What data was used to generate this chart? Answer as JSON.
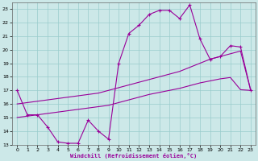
{
  "xlabel": "Windchill (Refroidissement éolien,°C)",
  "xlim": [
    -0.5,
    23.5
  ],
  "ylim": [
    13,
    23.5
  ],
  "yticks": [
    13,
    14,
    15,
    16,
    17,
    18,
    19,
    20,
    21,
    22,
    23
  ],
  "xticks": [
    0,
    1,
    2,
    3,
    4,
    5,
    6,
    7,
    8,
    9,
    10,
    11,
    12,
    13,
    14,
    15,
    16,
    17,
    18,
    19,
    20,
    21,
    22,
    23
  ],
  "bg_color": "#cce8e8",
  "grid_color": "#99cccc",
  "line_color": "#990099",
  "line1_x": [
    0,
    1,
    2,
    3,
    4,
    5,
    6,
    7,
    8,
    9,
    10,
    11,
    12,
    13,
    14,
    15,
    16,
    17,
    18,
    19,
    20,
    21,
    22,
    23
  ],
  "line1_y": [
    17.0,
    15.2,
    15.2,
    14.3,
    13.2,
    13.1,
    13.1,
    14.8,
    14.0,
    13.4,
    19.0,
    21.2,
    21.8,
    22.6,
    22.9,
    22.9,
    22.3,
    23.3,
    20.8,
    19.3,
    19.5,
    20.3,
    20.2,
    17.0
  ],
  "line2_x": [
    0,
    1,
    2,
    3,
    4,
    5,
    6,
    7,
    8,
    9,
    10,
    11,
    12,
    13,
    14,
    15,
    16,
    17,
    18,
    19,
    20,
    21,
    22,
    23
  ],
  "line2_y": [
    15.0,
    15.1,
    15.2,
    15.3,
    15.4,
    15.5,
    15.6,
    15.7,
    15.8,
    15.9,
    16.1,
    16.3,
    16.5,
    16.7,
    16.85,
    17.0,
    17.15,
    17.35,
    17.55,
    17.7,
    17.85,
    17.95,
    17.05,
    17.0
  ],
  "line3_x": [
    0,
    1,
    2,
    3,
    4,
    5,
    6,
    7,
    8,
    9,
    10,
    11,
    12,
    13,
    14,
    15,
    16,
    17,
    18,
    19,
    20,
    21,
    22,
    23
  ],
  "line3_y": [
    16.0,
    16.1,
    16.2,
    16.3,
    16.4,
    16.5,
    16.6,
    16.7,
    16.8,
    17.0,
    17.2,
    17.4,
    17.6,
    17.8,
    18.0,
    18.2,
    18.4,
    18.7,
    19.0,
    19.3,
    19.5,
    19.7,
    19.9,
    17.0
  ]
}
